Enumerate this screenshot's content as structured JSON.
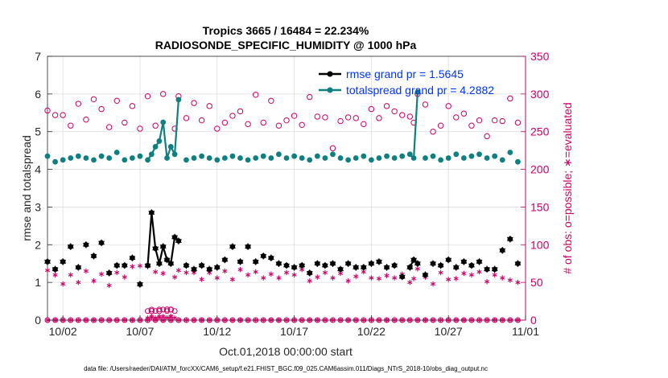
{
  "chart_data": {
    "type": "line",
    "title_line1": "Tropics 3665 / 16484 = 22.234%",
    "title_line2": "RADIOSONDE_SPECIFIC_HUMIDITY @ 1000 hPa",
    "xlabel": "Oct.01,2018 00:00:00 start",
    "ylabel_left": "rmse and totalspread",
    "ylabel_right": "# of obs: o=possible; ∗=evaluated",
    "footer": "data file: /Users/raeder/DAI/ATM_forcXX/CAM6_setup/f.e21.FHIST_BGC.f09_025.CAM6assim.011/Diags_NTrS_2018-10/obs_diag_output.nc",
    "xlim": [
      0.5,
      31.5
    ],
    "ylim_left": [
      0,
      7
    ],
    "ylim_right": [
      0,
      350
    ],
    "x_ticks": [
      1.5,
      6.5,
      11.5,
      16.5,
      21.5,
      26.5,
      31.5
    ],
    "x_tick_labels": [
      "10/02",
      "10/07",
      "10/12",
      "10/17",
      "10/22",
      "10/27",
      "11/01"
    ],
    "y_ticks_left": [
      0,
      1,
      2,
      3,
      4,
      5,
      6,
      7
    ],
    "y_tick_labels_left": [
      "0",
      "1",
      "2",
      "3",
      "4",
      "5",
      "6",
      "7"
    ],
    "y_ticks_right": [
      0,
      50,
      100,
      150,
      200,
      250,
      300,
      350
    ],
    "y_tick_labels_right": [
      "0",
      "50",
      "100",
      "150",
      "200",
      "250",
      "300",
      "350"
    ],
    "grid": true,
    "legend_position": "top-right",
    "colors": {
      "rmse": "#000000",
      "totalspread": "#0f7f7f",
      "obs": "#cc0066",
      "legend_text": "#0033ff",
      "grid": "#dedede"
    },
    "series": [
      {
        "name": "rmse grand pr = 1.5645",
        "axis": "left",
        "x": [
          0.5,
          1.0,
          1.5,
          2.0,
          2.5,
          3.0,
          3.5,
          4.0,
          4.5,
          5.0,
          5.5,
          6.0,
          6.5,
          7.0,
          7.25,
          7.5,
          7.75,
          8.0,
          8.25,
          8.5,
          8.75,
          9.0,
          9.5,
          10.0,
          10.5,
          11.0,
          11.5,
          12.0,
          12.5,
          13.0,
          13.5,
          14.0,
          14.5,
          15.0,
          15.5,
          16.0,
          16.5,
          17.0,
          17.5,
          18.0,
          18.5,
          19.0,
          19.5,
          20.0,
          20.5,
          21.0,
          21.5,
          22.0,
          22.5,
          23.0,
          23.5,
          24.0,
          24.25,
          24.5,
          25.0,
          25.5,
          26.0,
          26.5,
          27.0,
          27.5,
          28.0,
          28.5,
          29.0,
          29.5,
          30.0,
          30.5,
          31.0
        ],
        "values": [
          1.55,
          1.35,
          1.55,
          1.95,
          1.4,
          2.0,
          1.7,
          2.05,
          1.25,
          1.45,
          1.45,
          1.65,
          0.95,
          1.45,
          2.85,
          1.9,
          1.5,
          1.95,
          1.6,
          1.5,
          2.2,
          2.1,
          1.45,
          1.35,
          1.45,
          1.35,
          1.4,
          1.6,
          1.95,
          1.55,
          1.95,
          1.55,
          1.7,
          1.65,
          1.5,
          1.45,
          1.4,
          1.45,
          1.25,
          1.5,
          1.45,
          1.5,
          1.35,
          1.5,
          1.4,
          1.4,
          1.5,
          1.55,
          1.4,
          1.45,
          1.15,
          1.4,
          1.6,
          1.5,
          1.2,
          1.5,
          1.45,
          1.6,
          1.4,
          1.55,
          1.45,
          1.55,
          1.35,
          1.35,
          1.85,
          2.15,
          1.5
        ]
      },
      {
        "name": "totalspread grand pr = 4.2882",
        "axis": "left",
        "x": [
          0.5,
          1.0,
          1.5,
          2.0,
          2.5,
          3.0,
          3.5,
          4.0,
          4.5,
          5.0,
          5.5,
          6.0,
          6.5,
          7.0,
          7.25,
          7.5,
          7.75,
          8.0,
          8.25,
          8.5,
          8.75,
          9.0,
          9.5,
          10.0,
          10.5,
          11.0,
          11.5,
          12.0,
          12.5,
          13.0,
          13.5,
          14.0,
          14.5,
          15.0,
          15.5,
          16.0,
          16.5,
          17.0,
          17.5,
          18.0,
          18.5,
          19.0,
          19.5,
          20.0,
          20.5,
          21.0,
          21.5,
          22.0,
          22.5,
          23.0,
          23.5,
          24.0,
          24.25,
          24.5,
          25.0,
          25.5,
          26.0,
          26.5,
          27.0,
          27.5,
          28.0,
          28.5,
          29.0,
          29.5,
          30.0,
          30.5,
          31.0
        ],
        "values": [
          4.35,
          4.2,
          4.25,
          4.3,
          4.35,
          4.3,
          4.25,
          4.35,
          4.3,
          4.45,
          4.25,
          4.3,
          4.35,
          4.25,
          4.4,
          4.6,
          4.75,
          5.25,
          4.3,
          4.6,
          4.4,
          5.85,
          4.25,
          4.3,
          4.35,
          4.3,
          4.25,
          4.3,
          4.35,
          4.3,
          4.25,
          4.3,
          4.35,
          4.3,
          4.4,
          4.3,
          4.35,
          4.3,
          4.25,
          4.35,
          4.3,
          4.4,
          4.3,
          4.25,
          4.3,
          4.35,
          4.25,
          4.3,
          4.35,
          4.3,
          4.35,
          4.4,
          4.3,
          6.05,
          4.3,
          4.35,
          4.25,
          4.3,
          4.4,
          4.3,
          4.35,
          4.4,
          4.3,
          4.35,
          4.25,
          4.45,
          4.2
        ]
      }
    ],
    "obs_possible": {
      "name": "obs possible",
      "axis": "right",
      "x": [
        0.5,
        1.0,
        1.5,
        2.0,
        2.5,
        3.0,
        3.5,
        4.0,
        4.5,
        5.0,
        5.5,
        6.0,
        6.5,
        7.0,
        7.25,
        7.5,
        7.75,
        8.0,
        8.25,
        8.5,
        8.75,
        9.0,
        9.5,
        10.0,
        10.5,
        11.0,
        11.5,
        12.0,
        12.5,
        13.0,
        13.5,
        14.0,
        14.5,
        15.0,
        15.5,
        16.0,
        16.5,
        17.0,
        17.5,
        18.0,
        18.5,
        19.0,
        19.5,
        20.0,
        20.5,
        21.0,
        21.5,
        22.0,
        22.5,
        23.0,
        23.5,
        24.0,
        24.25,
        24.5,
        25.0,
        25.5,
        26.0,
        26.5,
        27.0,
        27.5,
        28.0,
        28.5,
        29.0,
        29.5,
        30.0,
        30.5,
        31.0
      ],
      "values": [
        278,
        272,
        272,
        258,
        287,
        266,
        293,
        280,
        256,
        291,
        262,
        284,
        254,
        297,
        12,
        258,
        12,
        300,
        14,
        14,
        254,
        297,
        268,
        288,
        265,
        284,
        254,
        262,
        271,
        277,
        260,
        299,
        262,
        291,
        258,
        265,
        271,
        259,
        296,
        270,
        269,
        228,
        264,
        269,
        268,
        260,
        280,
        268,
        284,
        277,
        272,
        270,
        262,
        300,
        286,
        250,
        258,
        284,
        269,
        274,
        258,
        265,
        244,
        265,
        264,
        294,
        262
      ],
      "eval_times": [
        0.5,
        1.0,
        1.5,
        2.0,
        2.5,
        3.0,
        3.5,
        4.0,
        4.5,
        5.0,
        5.5,
        6.0,
        6.5,
        7.0,
        7.25,
        7.5,
        7.75,
        8.0,
        8.25,
        8.5,
        8.75,
        9.0,
        9.5,
        10.0,
        10.5,
        11.0,
        11.5,
        12.0,
        12.5,
        13.0,
        13.5,
        14.0,
        14.5,
        15.0,
        15.5,
        16.0,
        16.5,
        17.0,
        17.5,
        18.0,
        18.5,
        19.0,
        19.5,
        20.0,
        20.5,
        21.0,
        21.5,
        22.0,
        22.5,
        23.0,
        23.5,
        24.0,
        24.25,
        24.5,
        25.0,
        25.5,
        26.0,
        26.5,
        27.0,
        27.5,
        28.0,
        28.5,
        29.0,
        29.5,
        30.0,
        30.5,
        31.0
      ]
    },
    "obs_evaluated": {
      "name": "obs evaluated",
      "axis": "right",
      "x": [
        0.5,
        1.0,
        1.5,
        2.0,
        2.5,
        3.0,
        3.5,
        4.0,
        4.5,
        5.0,
        5.5,
        6.0,
        6.5,
        7.0,
        7.25,
        7.5,
        7.75,
        8.0,
        8.25,
        8.5,
        8.75,
        9.0,
        9.5,
        10.0,
        10.5,
        11.0,
        11.5,
        12.0,
        12.5,
        13.0,
        13.5,
        14.0,
        14.5,
        15.0,
        15.5,
        16.0,
        16.5,
        17.0,
        17.5,
        18.0,
        18.5,
        19.0,
        19.5,
        20.0,
        20.5,
        21.0,
        21.5,
        22.0,
        22.5,
        23.0,
        23.5,
        24.0,
        24.25,
        24.5,
        25.0,
        25.5,
        26.0,
        26.5,
        27.0,
        27.5,
        28.0,
        28.5,
        29.0,
        29.5,
        30.0,
        30.5,
        31.0
      ],
      "values": [
        66,
        60,
        48,
        60,
        50,
        65,
        52,
        61,
        46,
        63,
        57,
        71,
        72,
        71,
        3,
        64,
        3,
        62,
        3,
        5,
        57,
        66,
        63,
        63,
        54,
        63,
        56,
        65,
        54,
        67,
        60,
        64,
        56,
        61,
        56,
        63,
        60,
        67,
        52,
        57,
        63,
        56,
        62,
        52,
        58,
        64,
        56,
        55,
        59,
        56,
        61,
        50,
        55,
        68,
        57,
        48,
        63,
        54,
        55,
        62,
        60,
        64,
        51,
        60,
        56,
        53,
        50
      ]
    },
    "baseline_obs": {
      "x": [
        0.5,
        1.0,
        1.5,
        2.0,
        2.5,
        3.0,
        3.5,
        4.0,
        4.5,
        5.0,
        5.5,
        6.0,
        6.5,
        7.0,
        7.5,
        8.0,
        8.5,
        9.0,
        9.5,
        10.0,
        10.5,
        11.0,
        11.5,
        12.0,
        12.5,
        13.0,
        13.5,
        14.0,
        14.5,
        15.0,
        15.5,
        16.0,
        16.5,
        17.0,
        17.5,
        18.0,
        18.5,
        19.0,
        19.5,
        20.0,
        20.5,
        21.0,
        21.5,
        22.0,
        22.5,
        23.0,
        23.5,
        24.0,
        24.5,
        25.0,
        25.5,
        26.0,
        26.5,
        27.0,
        27.5,
        28.0,
        28.5,
        29.0,
        29.5,
        30.0,
        30.5,
        31.0
      ],
      "values": [
        0,
        0,
        0,
        0,
        0,
        0,
        0,
        0,
        0,
        0,
        0,
        0,
        0,
        0,
        0,
        0,
        0,
        0,
        0,
        0,
        0,
        0,
        0,
        0,
        0,
        0,
        0,
        0,
        0,
        0,
        0,
        0,
        0,
        0,
        0,
        0,
        0,
        0,
        0,
        0,
        0,
        0,
        0,
        0,
        0,
        0,
        0,
        0,
        0,
        0,
        0,
        0,
        0,
        0,
        0,
        0,
        0,
        0,
        0,
        0,
        0,
        0
      ]
    },
    "extra_low_obs": {
      "x": [
        7.0,
        7.25,
        7.5,
        7.75,
        8.0,
        8.25,
        8.5,
        8.75
      ],
      "possible": [
        12,
        14,
        12,
        14,
        14,
        12,
        14,
        12
      ],
      "evaluated": [
        3,
        5,
        3,
        5,
        5,
        3,
        5,
        3
      ]
    }
  }
}
